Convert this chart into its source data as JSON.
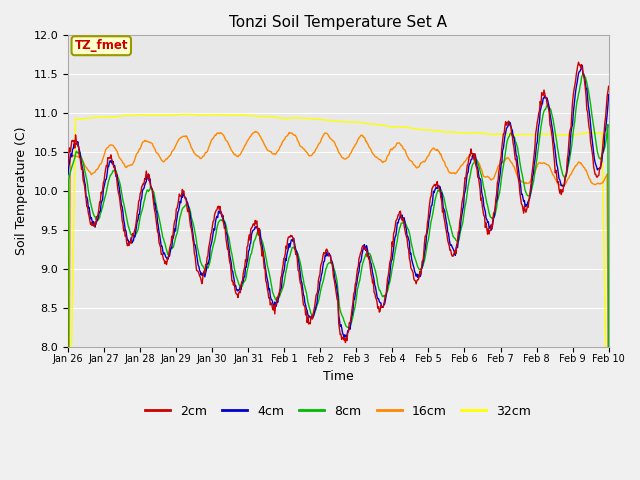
{
  "title": "Tonzi Soil Temperature Set A",
  "xlabel": "Time",
  "ylabel": "Soil Temperature (C)",
  "ylim": [
    8.0,
    12.0
  ],
  "yticks": [
    8.0,
    8.5,
    9.0,
    9.5,
    10.0,
    10.5,
    11.0,
    11.5,
    12.0
  ],
  "xtick_labels": [
    "Jan 26",
    "Jan 27",
    "Jan 28",
    "Jan 29",
    "Jan 30",
    "Jan 31",
    "Feb 1",
    "Feb 2",
    "Feb 3",
    "Feb 4",
    "Feb 5",
    "Feb 6",
    "Feb 7",
    "Feb 8",
    "Feb 9",
    "Feb 10"
  ],
  "series_colors": {
    "2cm": "#cc0000",
    "4cm": "#0000cc",
    "8cm": "#00bb00",
    "16cm": "#ff8800",
    "32cm": "#ffff00"
  },
  "annotation_text": "TZ_fmet",
  "annotation_color": "#cc0000",
  "annotation_bg": "#ffffcc",
  "annotation_border": "#999900",
  "bg_color": "#e8e8e8",
  "grid_color": "#ffffff",
  "fig_bg": "#f0f0f0"
}
